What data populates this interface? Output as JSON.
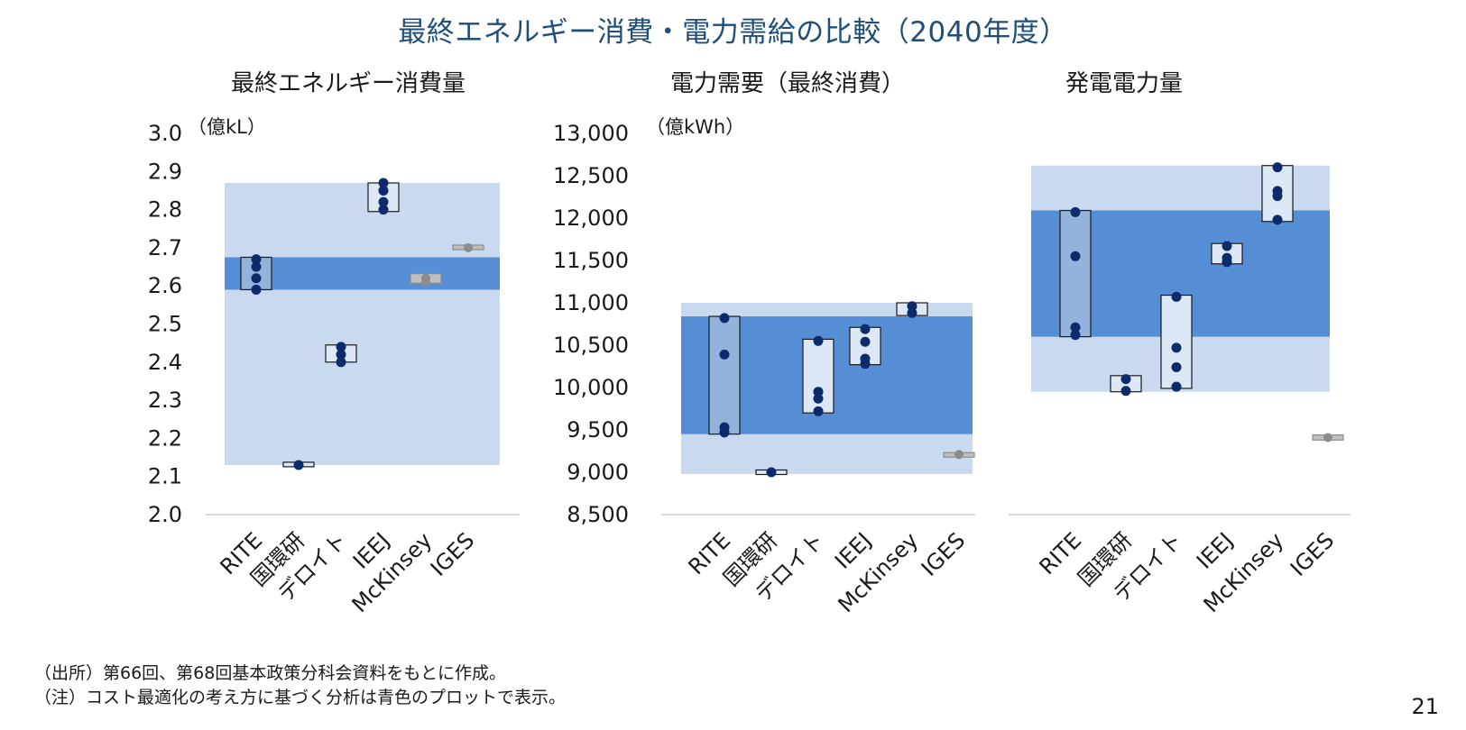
{
  "title": "最終エネルギー消費・電力需給の比較（2040年度）",
  "notes": {
    "source": "（出所）第66回、第68回基本政策分科会資料をもとに作成。",
    "note": "（注）コスト最適化の考え方に基づく分析は青色のプロットで表示。"
  },
  "page_number": "21",
  "colors": {
    "outer_band": "#c8d9f0",
    "inner_band": "#558ed5",
    "box_fill_light": "#dde8f6",
    "box_fill_mid": "#94b3dc",
    "box_stroke": "#1a1a1a",
    "dot_blue": "#0d2a6b",
    "dot_gray": "#8c8c8c",
    "box_gray": "#bfbfbf",
    "axis_line": "#d9d9d9"
  },
  "chart_data": [
    {
      "type": "scatter",
      "title": "最終エネルギー消費量",
      "unit_label": "（億kL）",
      "categories": [
        "RITE",
        "国環研",
        "デロイト",
        "IEEJ",
        "McKinsey",
        "IGES"
      ],
      "ylim": [
        2.0,
        3.0
      ],
      "yticks": [
        "2.0",
        "2.1",
        "2.2",
        "2.3",
        "2.4",
        "2.5",
        "2.6",
        "2.7",
        "2.8",
        "2.9",
        "3.0"
      ],
      "outer_band": [
        2.13,
        2.87
      ],
      "inner_band": [
        2.59,
        2.675
      ],
      "series": [
        {
          "category": "RITE",
          "points": [
            2.59,
            2.62,
            2.65,
            2.67
          ],
          "box": [
            2.59,
            2.675
          ],
          "box_style": "mid"
        },
        {
          "category": "国環研",
          "points": [
            2.13
          ],
          "box": [
            2.128,
            2.135
          ],
          "box_style": "light"
        },
        {
          "category": "デロイト",
          "points": [
            2.4,
            2.42,
            2.44
          ],
          "box": [
            2.4,
            2.445
          ],
          "box_style": "light"
        },
        {
          "category": "IEEJ",
          "points": [
            2.8,
            2.82,
            2.85,
            2.87
          ],
          "box": [
            2.795,
            2.87
          ],
          "box_style": "light"
        },
        {
          "category": "McKinsey",
          "points": [
            2.61,
            2.62
          ],
          "box": [
            2.607,
            2.632
          ],
          "box_style": "gray"
        },
        {
          "category": "IGES",
          "points": [
            2.7
          ],
          "box": [
            2.697,
            2.705
          ],
          "box_style": "gray"
        }
      ]
    },
    {
      "type": "scatter",
      "title": "電力需要（最終消費）",
      "unit_label": "（億kWh）",
      "categories": [
        "RITE",
        "国環研",
        "デロイト",
        "IEEJ",
        "McKinsey",
        "IGES"
      ],
      "ylim": [
        8500,
        13000
      ],
      "yticks": [
        "8,500",
        "9,000",
        "9,500",
        "10,000",
        "10,500",
        "11,000",
        "11,500",
        "12,000",
        "12,500",
        "13,000"
      ],
      "outer_band": [
        8980,
        11000
      ],
      "inner_band": [
        9450,
        10840
      ],
      "series": [
        {
          "category": "RITE",
          "points": [
            9470,
            9530,
            10390,
            10820
          ],
          "box": [
            9450,
            10840
          ],
          "box_style": "mid"
        },
        {
          "category": "国環研",
          "points": [
            9000
          ],
          "box": [
            8980,
            9020
          ],
          "box_style": "light"
        },
        {
          "category": "デロイト",
          "points": [
            9720,
            9870,
            9950,
            10550
          ],
          "box": [
            9700,
            10570
          ],
          "box_style": "light"
        },
        {
          "category": "IEEJ",
          "points": [
            10280,
            10340,
            10540,
            10690
          ],
          "box": [
            10270,
            10710
          ],
          "box_style": "light"
        },
        {
          "category": "McKinsey",
          "points": [
            10880,
            10960
          ],
          "box": [
            10850,
            11000
          ],
          "box_style": "light"
        },
        {
          "category": "IGES",
          "points": [
            9210
          ],
          "box": [
            9180,
            9230
          ],
          "box_style": "gray"
        }
      ]
    },
    {
      "type": "scatter",
      "title": "発電電力量",
      "unit_label": "",
      "categories": [
        "RITE",
        "国環研",
        "デロイト",
        "IEEJ",
        "McKinsey",
        "IGES"
      ],
      "ylim": [
        8500,
        13000
      ],
      "yticks": [],
      "outer_band": [
        9950,
        12620
      ],
      "inner_band": [
        10600,
        12090
      ],
      "series": [
        {
          "category": "RITE",
          "points": [
            10620,
            10710,
            11550,
            12070
          ],
          "box": [
            10600,
            12090
          ],
          "box_style": "mid"
        },
        {
          "category": "国環研",
          "points": [
            9960,
            10100
          ],
          "box": [
            9950,
            10140
          ],
          "box_style": "light"
        },
        {
          "category": "デロイト",
          "points": [
            10010,
            10240,
            10470,
            11070
          ],
          "box": [
            9990,
            11090
          ],
          "box_style": "light"
        },
        {
          "category": "IEEJ",
          "points": [
            11480,
            11530,
            11670
          ],
          "box": [
            11460,
            11700
          ],
          "box_style": "light"
        },
        {
          "category": "McKinsey",
          "points": [
            11980,
            12260,
            12320,
            12600
          ],
          "box": [
            11960,
            12620
          ],
          "box_style": "light"
        },
        {
          "category": "IGES",
          "points": [
            9410
          ],
          "box": [
            9380,
            9440
          ],
          "box_style": "gray"
        }
      ]
    }
  ]
}
